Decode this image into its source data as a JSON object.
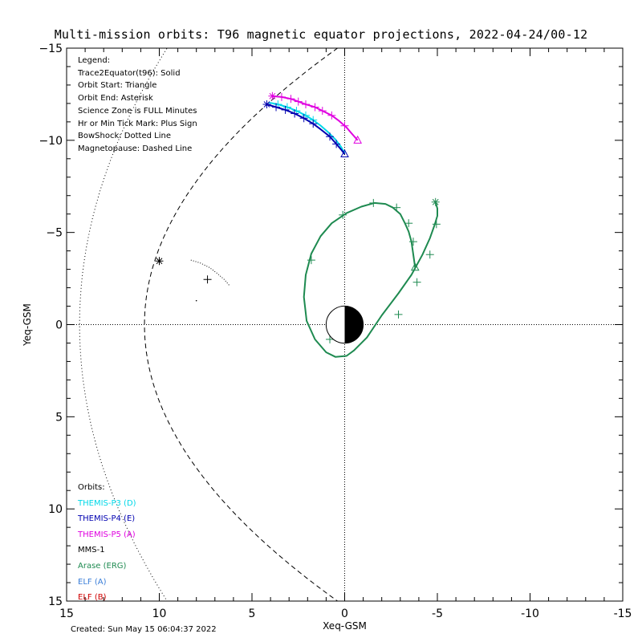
{
  "title": "Multi-mission orbits: T96 magnetic equator projections, 2022-04-24/00-12",
  "created": "Created: Sun May 15 06:04:37 2022",
  "legend": {
    "items": [
      "Legend:",
      "Trace2Equator(t96): Solid",
      "Orbit Start: Triangle",
      "Orbit End: Asterisk",
      "Science Zone is FULL Minutes",
      "Hr or Min Tick Mark: Plus Sign",
      "BowShock: Dotted Line",
      "Magnetopause: Dashed Line"
    ]
  },
  "orbits": {
    "heading": "Orbits:",
    "items": [
      {
        "label": "THEMIS-P3 (D)",
        "color": "#00d8e8"
      },
      {
        "label": "THEMIS-P4 (E)",
        "color": "#0000b0"
      },
      {
        "label": "THEMIS-P5 (A)",
        "color": "#e000e0"
      },
      {
        "label": "MMS-1",
        "color": "#000000"
      },
      {
        "label": "Arase (ERG)",
        "color": "#1e8a50"
      },
      {
        "label": "ELF (A)",
        "color": "#3a7ed8"
      },
      {
        "label": "ELF (B)",
        "color": "#d00000"
      }
    ]
  },
  "chart_data": {
    "type": "line",
    "xlabel": "Xeq-GSM",
    "ylabel": "Yeq-GSM",
    "xlim": [
      15,
      -15
    ],
    "ylim": [
      -15,
      15
    ],
    "xticks": [
      15,
      10,
      5,
      0,
      -5,
      -10,
      -15
    ],
    "yticks": [
      -15,
      -10,
      -5,
      0,
      5,
      10,
      15
    ],
    "xtick_labels": [
      "15",
      "10",
      "5",
      "0",
      "-5",
      "-10",
      "-15"
    ],
    "ytick_labels": [
      "−15",
      "−10",
      "−5",
      "0",
      "5",
      "10",
      "15"
    ],
    "series": [
      {
        "name": "THEMIS-P5 (A)",
        "color": "#e000e0",
        "x": [
          3.9,
          3.4,
          2.9,
          2.5,
          2.1,
          1.6,
          1.2,
          0.7,
          0.3,
          -0.1,
          -0.35,
          -0.7
        ],
        "y": [
          -12.4,
          -12.35,
          -12.25,
          -12.1,
          -11.95,
          -11.8,
          -11.6,
          -11.35,
          -11.05,
          -10.7,
          -10.4,
          -10.0
        ],
        "start": [
          -0.7,
          -10.0
        ],
        "end": [
          3.9,
          -12.4
        ],
        "ticks_x": [
          3.4,
          2.9,
          2.5,
          2.1,
          1.6,
          1.2,
          0.7,
          0.0
        ]
      },
      {
        "name": "THEMIS-P3 (D)",
        "color": "#00d8e8",
        "x": [
          4.1,
          3.6,
          3.1,
          2.6,
          2.1,
          1.7,
          1.3,
          0.9,
          0.5,
          0.2,
          0.0
        ],
        "y": [
          -12.05,
          -11.95,
          -11.8,
          -11.6,
          -11.35,
          -11.1,
          -10.8,
          -10.45,
          -10.05,
          -9.65,
          -9.3
        ],
        "ticks_x": [
          3.6,
          3.1,
          2.6,
          2.1,
          1.7
        ]
      },
      {
        "name": "THEMIS-P4 (E)",
        "color": "#0000b0",
        "x": [
          4.2,
          3.7,
          3.2,
          2.7,
          2.2,
          1.7,
          1.3,
          0.8,
          0.45,
          0.15,
          0.0
        ],
        "y": [
          -11.95,
          -11.8,
          -11.65,
          -11.45,
          -11.2,
          -10.9,
          -10.6,
          -10.2,
          -9.8,
          -9.45,
          -9.25
        ],
        "start": [
          0.0,
          -9.25
        ],
        "end": [
          4.2,
          -11.95
        ],
        "ticks_x": [
          3.7,
          3.2,
          2.7,
          2.2,
          1.7,
          0.8,
          0.45
        ]
      },
      {
        "name": "Arase (ERG)",
        "color": "#1e8a50",
        "x": [
          -3.8,
          -3.7,
          -3.6,
          -3.45,
          -3.25,
          -3.0,
          -2.6,
          -2.2,
          -1.6,
          -0.9,
          -0.1,
          0.7,
          1.3,
          1.8,
          2.1,
          2.2,
          2.05,
          1.6,
          1.0,
          0.5,
          -0.1,
          -0.5,
          -1.2,
          -2.0,
          -2.9,
          -3.6,
          -4.2,
          -4.6,
          -4.85,
          -5.0,
          -5.0,
          -4.9
        ],
        "y": [
          -3.1,
          -3.8,
          -4.5,
          -5.05,
          -5.5,
          -6.0,
          -6.35,
          -6.55,
          -6.6,
          -6.4,
          -6.05,
          -5.5,
          -4.8,
          -3.85,
          -2.7,
          -1.5,
          -0.2,
          0.8,
          1.5,
          1.75,
          1.7,
          1.4,
          0.7,
          -0.5,
          -1.7,
          -2.7,
          -3.8,
          -4.7,
          -5.4,
          -5.9,
          -6.3,
          -6.65
        ],
        "start": [
          -3.8,
          -3.1
        ],
        "end": [
          -4.9,
          -6.65
        ],
        "ticks": [
          [
            -3.7,
            -4.5
          ],
          [
            -3.45,
            -5.5
          ],
          [
            -2.8,
            -6.35
          ],
          [
            -1.55,
            -6.6
          ],
          [
            0.1,
            -5.95
          ],
          [
            1.8,
            -3.5
          ],
          [
            0.8,
            0.8
          ],
          [
            -2.9,
            -0.55
          ],
          [
            -3.9,
            -2.3
          ],
          [
            -4.6,
            -3.8
          ],
          [
            -4.95,
            -5.45
          ]
        ]
      },
      {
        "name": "MMS-1",
        "color": "#000000",
        "x": [
          8.3,
          7.8,
          7.3,
          6.9,
          6.5,
          6.2
        ],
        "y": [
          -3.5,
          -3.35,
          -3.1,
          -2.8,
          -2.45,
          -2.1
        ],
        "end": [
          10.0,
          -3.45
        ],
        "ticks": [
          [
            7.4,
            -2.45
          ]
        ],
        "dot": [
          8.0,
          -1.3
        ]
      }
    ],
    "magnetopause": {
      "subsolar_x": 10.8,
      "flaring": 0.5
    },
    "bowshock": {
      "subsolar_x": 14.3,
      "flaring": 0.3
    },
    "earth": {
      "radius": 1,
      "dayside": "white",
      "nightside": "black"
    }
  }
}
